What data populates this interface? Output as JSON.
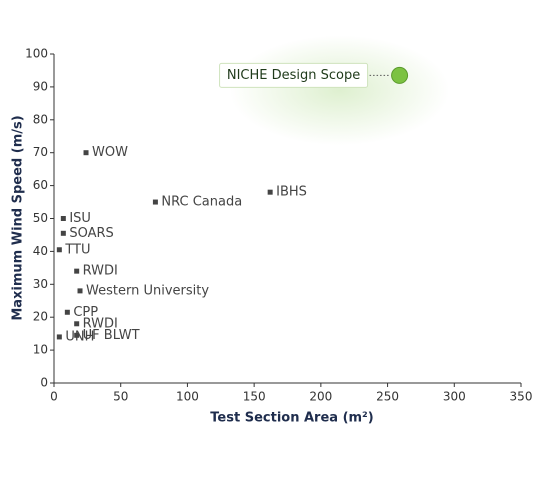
{
  "chart_data": {
    "type": "scatter",
    "x_label": "Test Section Area (m²)",
    "y_label": "Maximum Wind Speed (m/s)",
    "xlim": [
      0,
      350
    ],
    "xticks": [
      0,
      50,
      100,
      150,
      200,
      250,
      300,
      350
    ],
    "ylim": [
      0,
      100
    ],
    "yticks": [
      0,
      10,
      20,
      30,
      40,
      50,
      60,
      70,
      80,
      90,
      100
    ],
    "marker_color": "#444444",
    "points": [
      {
        "label": "WOW",
        "x": 24,
        "y": 70
      },
      {
        "label": "NRC Canada",
        "x": 76,
        "y": 55
      },
      {
        "label": "IBHS",
        "x": 162,
        "y": 58
      },
      {
        "label": "ISU",
        "x": 7,
        "y": 50
      },
      {
        "label": "SOARS",
        "x": 7,
        "y": 45.5
      },
      {
        "label": "TTU",
        "x": 4,
        "y": 40.5
      },
      {
        "label": "RWDI",
        "x": 17,
        "y": 34
      },
      {
        "label": "Western University",
        "x": 19.5,
        "y": 28
      },
      {
        "label": "CPP",
        "x": 10,
        "y": 21.5
      },
      {
        "label": "RWDI",
        "x": 17,
        "y": 18
      },
      {
        "label": "UF BLWT",
        "x": 17,
        "y": 14.5
      },
      {
        "label": "UNH",
        "x": 4,
        "y": 14
      }
    ],
    "highlight": {
      "label": "NICHE Design Scope",
      "x": 259,
      "y": 93.5,
      "color": "#7cc242"
    }
  }
}
